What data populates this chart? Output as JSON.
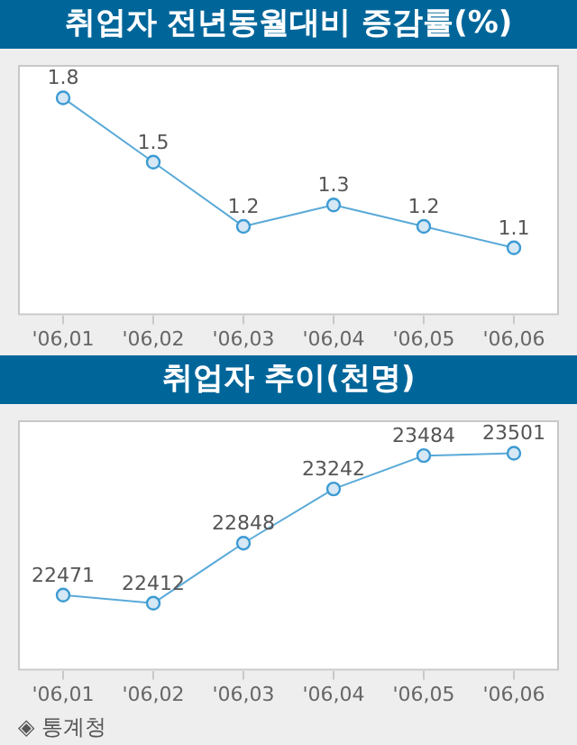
{
  "chart_data": [
    {
      "type": "line",
      "title": "취업자 전년동월대비 증감률(%)",
      "categories": [
        "'06,01",
        "'06,02",
        "'06,03",
        "'06,04",
        "'06,05",
        "'06,06"
      ],
      "values": [
        1.8,
        1.5,
        1.2,
        1.3,
        1.2,
        1.1
      ],
      "color": "#5aaad8",
      "marker": "circle",
      "data_labels": true
    },
    {
      "type": "line",
      "title": "취업자 추이(천명)",
      "categories": [
        "'06,01",
        "'06,02",
        "'06,03",
        "'06,04",
        "'06,05",
        "'06,06"
      ],
      "values": [
        22471,
        22412,
        22848,
        23242,
        23484,
        23501
      ],
      "color": "#5aaad8",
      "marker": "circle",
      "data_labels": true,
      "annotations": [
        "◈ 통계청"
      ]
    }
  ]
}
